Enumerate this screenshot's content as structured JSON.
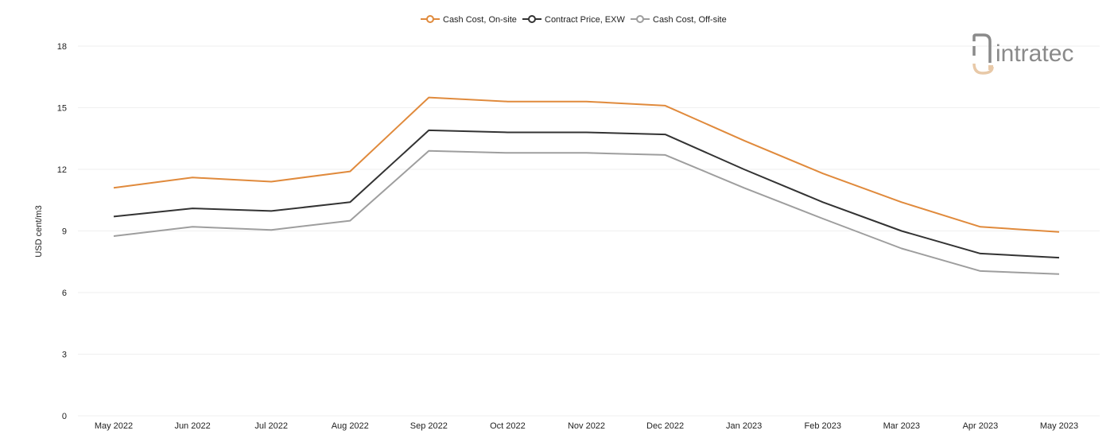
{
  "chart_data": {
    "type": "line",
    "ylabel": "USD cent/m3",
    "ylim": [
      0,
      18
    ],
    "yticks": [
      0,
      3,
      6,
      9,
      12,
      15,
      18
    ],
    "grid": true,
    "legend_position": "top-center",
    "categories": [
      "May 2022",
      "Jun 2022",
      "Jul 2022",
      "Aug 2022",
      "Sep 2022",
      "Oct 2022",
      "Nov 2022",
      "Dec 2022",
      "Jan 2023",
      "Feb 2023",
      "Mar 2023",
      "Apr 2023",
      "May 2023"
    ],
    "series": [
      {
        "name": "Cash Cost, On-site",
        "color": "#e08a3c",
        "values": [
          11.1,
          11.6,
          11.4,
          11.9,
          15.5,
          15.3,
          15.3,
          15.1,
          13.4,
          11.8,
          10.4,
          9.2,
          8.95
        ]
      },
      {
        "name": "Contract Price, EXW",
        "color": "#333333",
        "values": [
          9.7,
          10.1,
          9.97,
          10.4,
          13.9,
          13.8,
          13.8,
          13.7,
          12.0,
          10.4,
          9.0,
          7.9,
          7.7
        ]
      },
      {
        "name": "Cash Cost, Off-site",
        "color": "#9e9e9e",
        "values": [
          8.75,
          9.2,
          9.05,
          9.5,
          12.9,
          12.8,
          12.8,
          12.7,
          11.1,
          9.6,
          8.15,
          7.05,
          6.9
        ]
      }
    ]
  },
  "logo": {
    "text": "intratec",
    "color": "#8a8a8a",
    "accent": "#e8c9a8"
  }
}
